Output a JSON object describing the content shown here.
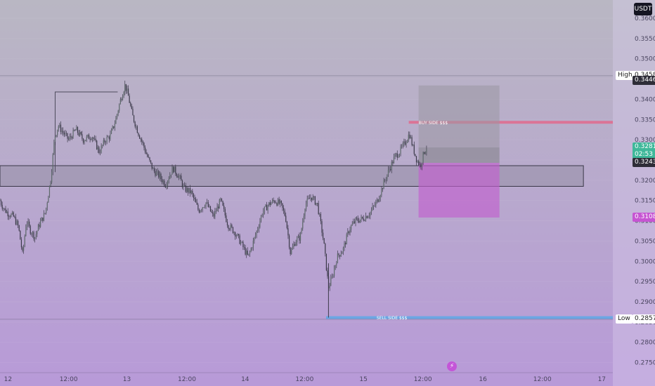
{
  "toolbar": {
    "currency_label": "USDT",
    "bolt_icon": "lightning-icon"
  },
  "colors": {
    "bg_top": "#b9b7c3",
    "bg_bottom": "#b89ad8",
    "candle": "#3c3a4a",
    "zone_fill": "#8f8a9e",
    "buy_line": "#e26a8e",
    "sell_line": "#5fa8e6",
    "tp_box": "#9a97a3",
    "sl_box": "#c15fce",
    "current_tag": "#3fb89a",
    "dark_tag": "#2e2d38",
    "stop_tag": "#c655d2"
  },
  "chart_data": {
    "type": "candlestick",
    "title": "",
    "xlabel": "",
    "ylabel": "",
    "ylim": [
      0.2725,
      0.3645
    ],
    "y_ticks": [
      "0.3600",
      "0.3550",
      "0.3500",
      "0.3450",
      "0.3400",
      "0.3350",
      "0.3300",
      "0.3250",
      "0.3200",
      "0.3150",
      "0.3100",
      "0.3050",
      "0.3000",
      "0.2950",
      "0.2900",
      "0.2850",
      "0.2800",
      "0.2750"
    ],
    "x_ticks": [
      "12",
      "12:00",
      "13",
      "12:00",
      "14",
      "12:00",
      "15",
      "12:00",
      "16",
      "12:00",
      "17"
    ],
    "path_anchors": [
      [
        0,
        0.315
      ],
      [
        0.006,
        0.313
      ],
      [
        0.012,
        0.312
      ],
      [
        0.022,
        0.311
      ],
      [
        0.03,
        0.3085
      ],
      [
        0.037,
        0.3015
      ],
      [
        0.043,
        0.31
      ],
      [
        0.05,
        0.3075
      ],
      [
        0.057,
        0.306
      ],
      [
        0.064,
        0.309
      ],
      [
        0.074,
        0.312
      ],
      [
        0.083,
        0.3205
      ],
      [
        0.089,
        0.3305
      ],
      [
        0.095,
        0.3335
      ],
      [
        0.102,
        0.332
      ],
      [
        0.112,
        0.33
      ],
      [
        0.124,
        0.3325
      ],
      [
        0.136,
        0.33
      ],
      [
        0.15,
        0.331
      ],
      [
        0.162,
        0.327
      ],
      [
        0.172,
        0.33
      ],
      [
        0.18,
        0.331
      ],
      [
        0.188,
        0.3345
      ],
      [
        0.196,
        0.3395
      ],
      [
        0.204,
        0.3435
      ],
      [
        0.209,
        0.341
      ],
      [
        0.216,
        0.336
      ],
      [
        0.225,
        0.332
      ],
      [
        0.233,
        0.329
      ],
      [
        0.24,
        0.326
      ],
      [
        0.25,
        0.3225
      ],
      [
        0.26,
        0.321
      ],
      [
        0.27,
        0.319
      ],
      [
        0.282,
        0.323
      ],
      [
        0.292,
        0.321
      ],
      [
        0.3,
        0.318
      ],
      [
        0.312,
        0.317
      ],
      [
        0.324,
        0.3125
      ],
      [
        0.336,
        0.3145
      ],
      [
        0.348,
        0.311
      ],
      [
        0.36,
        0.315
      ],
      [
        0.372,
        0.309
      ],
      [
        0.384,
        0.307
      ],
      [
        0.395,
        0.304
      ],
      [
        0.405,
        0.301
      ],
      [
        0.416,
        0.306
      ],
      [
        0.428,
        0.312
      ],
      [
        0.438,
        0.314
      ],
      [
        0.448,
        0.315
      ],
      [
        0.458,
        0.314
      ],
      [
        0.466,
        0.311
      ],
      [
        0.474,
        0.302
      ],
      [
        0.482,
        0.305
      ],
      [
        0.49,
        0.306
      ],
      [
        0.498,
        0.314
      ],
      [
        0.508,
        0.316
      ],
      [
        0.518,
        0.314
      ],
      [
        0.528,
        0.305
      ],
      [
        0.536,
        0.2935
      ],
      [
        0.542,
        0.296
      ],
      [
        0.55,
        0.301
      ],
      [
        0.56,
        0.303
      ],
      [
        0.57,
        0.308
      ],
      [
        0.58,
        0.31
      ],
      [
        0.592,
        0.3105
      ],
      [
        0.604,
        0.312
      ],
      [
        0.616,
        0.315
      ],
      [
        0.628,
        0.32
      ],
      [
        0.636,
        0.323
      ],
      [
        0.645,
        0.326
      ],
      [
        0.652,
        0.327
      ],
      [
        0.66,
        0.329
      ],
      [
        0.668,
        0.3315
      ],
      [
        0.674,
        0.328
      ],
      [
        0.68,
        0.325
      ],
      [
        0.686,
        0.3235
      ],
      [
        0.692,
        0.327
      ],
      [
        0.696,
        0.3281
      ]
    ],
    "swing_high_box": {
      "from_index": 0.09,
      "to_index": 0.192,
      "level": 0.3418
    },
    "zones": [
      {
        "name": "supply-demand-zone",
        "from": 0.3185,
        "to": 0.3236,
        "start": 0.0,
        "end": 0.952
      }
    ],
    "levels": [
      {
        "label": "BUY SIDE $$$",
        "value": 0.3343,
        "start": 0.667,
        "end": 1.0
      },
      {
        "label": "SELL SIDE $$$",
        "value": 0.2861,
        "start": 0.532,
        "end": 1.0
      },
      {
        "label": "High",
        "value": 0.3458,
        "start": 0.0,
        "end": 1.0
      },
      {
        "label": "Low",
        "value": 0.2857,
        "start": 0.0,
        "end": 1.0
      }
    ],
    "position": {
      "take_profit_top": 0.3434,
      "entry": 0.3243,
      "stop": 0.3108,
      "start": 0.683,
      "end": 0.815,
      "mid_line": 0.3281
    },
    "price_tags": [
      {
        "key": "high",
        "value": 0.3458,
        "text": "0.3458",
        "label": "High",
        "style": "light"
      },
      {
        "key": "current_dark",
        "value": 0.3446,
        "text": "0.3446",
        "style": "dark"
      },
      {
        "key": "current",
        "value": 0.3281,
        "text": "0.3281",
        "sub": "02:53",
        "style": "green"
      },
      {
        "key": "entry",
        "value": 0.3243,
        "text": "0.3243",
        "style": "dark"
      },
      {
        "key": "stop",
        "value": 0.3108,
        "text": "0.3108",
        "style": "stop"
      },
      {
        "key": "low",
        "value": 0.2857,
        "text": "0.2857",
        "label": "Low",
        "style": "light"
      }
    ]
  }
}
